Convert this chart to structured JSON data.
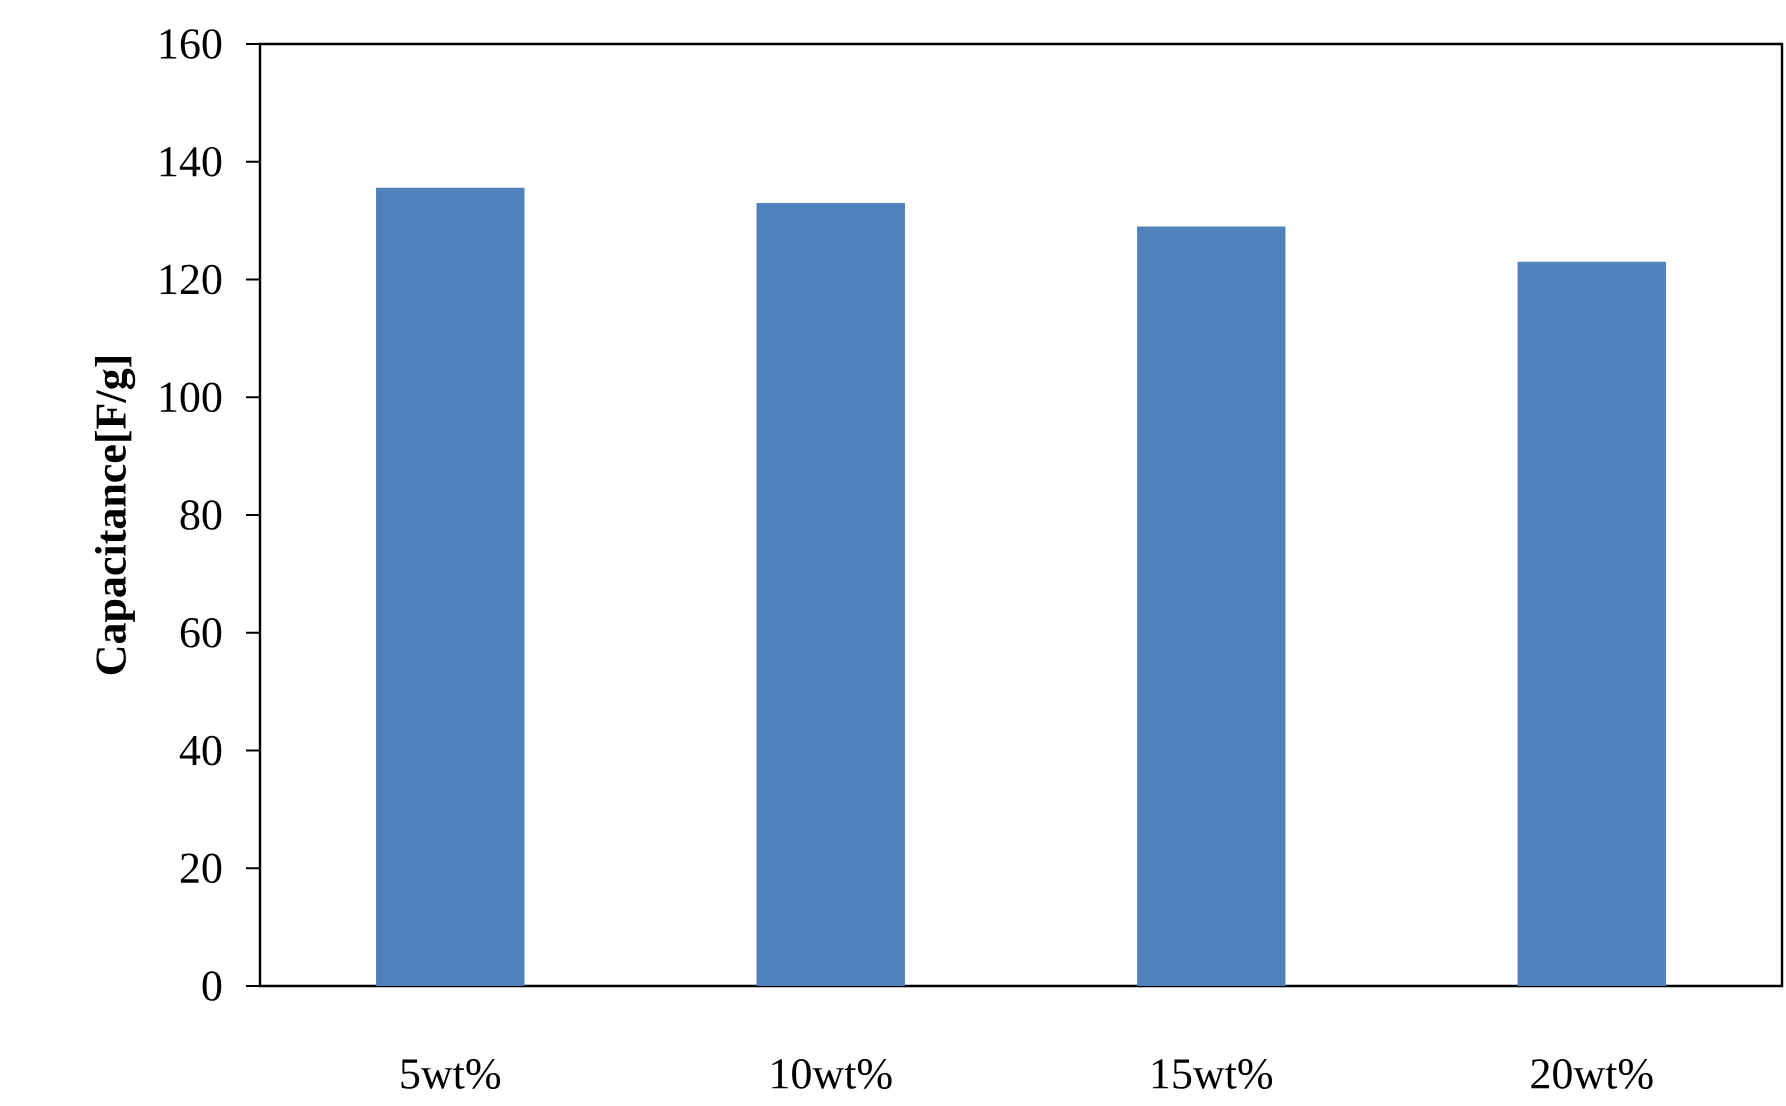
{
  "chart_data": {
    "type": "bar",
    "ylabel": "Capacitance[F/g]",
    "categories": [
      "5wt%",
      "10wt%",
      "15wt%",
      "20wt%"
    ],
    "values": [
      135.6,
      133,
      129,
      123
    ],
    "color": "#4f81bd",
    "ylim": [
      0,
      160
    ],
    "yticks": [
      0,
      20,
      40,
      60,
      80,
      100,
      120,
      140,
      160
    ],
    "grid": false
  }
}
